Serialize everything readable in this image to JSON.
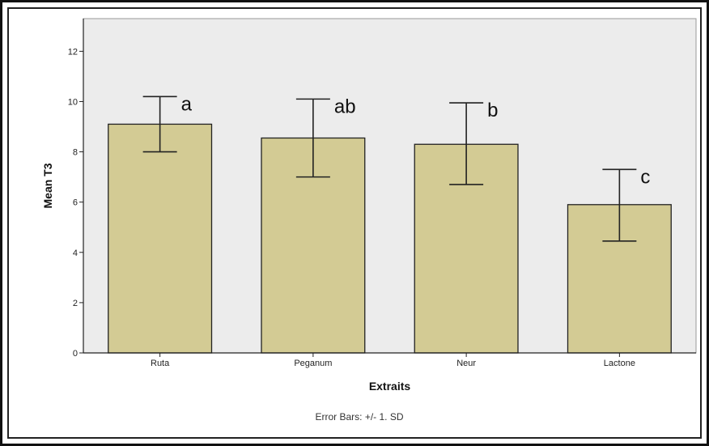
{
  "chart_data": {
    "type": "bar",
    "categories": [
      "Ruta",
      "Peganum",
      "Neur",
      "Lactone"
    ],
    "values": [
      9.1,
      8.55,
      8.3,
      5.9
    ],
    "error_low": [
      8.0,
      7.0,
      6.7,
      4.45
    ],
    "error_high": [
      10.2,
      10.1,
      9.95,
      7.3
    ],
    "significance_letters": [
      "a",
      "ab",
      "b",
      "c"
    ],
    "xlabel": "Extraits",
    "ylabel": "Mean T3",
    "ylim": [
      0,
      13.3
    ],
    "yticks": [
      0,
      2,
      4,
      6,
      8,
      10,
      12
    ],
    "footnote": "Error Bars: +/- 1. SD",
    "grid": false,
    "colors": {
      "bar_fill": "#d3cb94",
      "plot_bg": "#ececec",
      "stroke": "#222222"
    }
  }
}
